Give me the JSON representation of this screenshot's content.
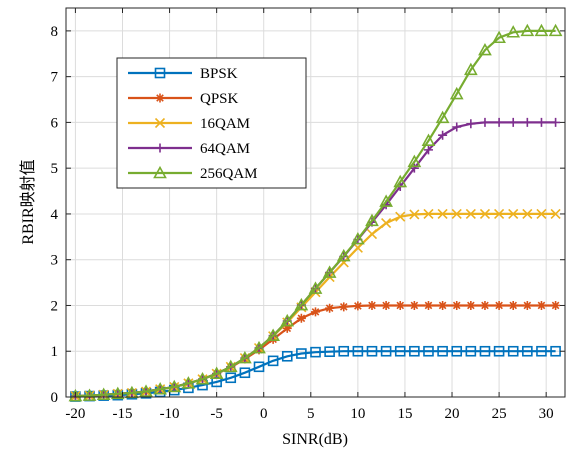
{
  "chart_data": {
    "type": "line",
    "title": "",
    "xlabel": "SINR(dB)",
    "ylabel": "RBIR映射值",
    "xlim": [
      -21,
      32
    ],
    "ylim": [
      0,
      8.5
    ],
    "xticks": [
      "-20",
      "-15",
      "-10",
      "-5",
      "0",
      "5",
      "10",
      "15",
      "20",
      "25",
      "30"
    ],
    "yticks": [
      "0",
      "1",
      "2",
      "3",
      "4",
      "5",
      "6",
      "7",
      "8"
    ],
    "grid": true,
    "legend_position": "upper-left",
    "x": [
      -20,
      -18.5,
      -17,
      -15.5,
      -14,
      -12.5,
      -11,
      -9.5,
      -8,
      -6.5,
      -5,
      -3.5,
      -2,
      -0.5,
      1,
      2.5,
      4,
      5.5,
      7,
      8.5,
      10,
      11.5,
      13,
      14.5,
      16,
      17.5,
      19,
      20.5,
      22,
      23.5,
      25,
      26.5,
      28,
      29.5,
      31
    ],
    "series": [
      {
        "name": "BPSK",
        "color": "#0072BD",
        "marker": "square",
        "values": [
          0.01,
          0.02,
          0.03,
          0.04,
          0.06,
          0.08,
          0.11,
          0.15,
          0.2,
          0.26,
          0.33,
          0.42,
          0.53,
          0.66,
          0.79,
          0.89,
          0.95,
          0.98,
          0.99,
          1,
          1,
          1,
          1,
          1,
          1,
          1,
          1,
          1,
          1,
          1,
          1,
          1,
          1,
          1,
          1
        ]
      },
      {
        "name": "QPSK",
        "color": "#D95319",
        "marker": "asterisk",
        "values": [
          0.02,
          0.03,
          0.05,
          0.07,
          0.09,
          0.12,
          0.17,
          0.22,
          0.3,
          0.39,
          0.51,
          0.65,
          0.83,
          1.03,
          1.26,
          1.5,
          1.72,
          1.86,
          1.94,
          1.97,
          1.99,
          2,
          2,
          2,
          2,
          2,
          2,
          2,
          2,
          2,
          2,
          2,
          2,
          2,
          2
        ]
      },
      {
        "name": "16QAM",
        "color": "#EDB120",
        "marker": "x",
        "values": [
          0.02,
          0.03,
          0.05,
          0.07,
          0.09,
          0.12,
          0.17,
          0.22,
          0.3,
          0.39,
          0.51,
          0.66,
          0.85,
          1.07,
          1.33,
          1.63,
          1.96,
          2.29,
          2.62,
          2.94,
          3.26,
          3.56,
          3.8,
          3.94,
          3.99,
          4,
          4,
          4,
          4,
          4,
          4,
          4,
          4,
          4,
          4
        ]
      },
      {
        "name": "64QAM",
        "color": "#7E2F8E",
        "marker": "plus",
        "values": [
          0.02,
          0.03,
          0.05,
          0.07,
          0.09,
          0.12,
          0.17,
          0.22,
          0.3,
          0.39,
          0.51,
          0.66,
          0.85,
          1.07,
          1.34,
          1.66,
          2.01,
          2.37,
          2.72,
          3.07,
          3.44,
          3.82,
          4.2,
          4.6,
          5.0,
          5.4,
          5.72,
          5.9,
          5.97,
          6,
          6,
          6,
          6,
          6,
          6
        ]
      },
      {
        "name": "256QAM",
        "color": "#77AC30",
        "marker": "triangle",
        "values": [
          0.02,
          0.03,
          0.05,
          0.07,
          0.09,
          0.12,
          0.17,
          0.22,
          0.3,
          0.39,
          0.51,
          0.66,
          0.85,
          1.07,
          1.34,
          1.66,
          2.01,
          2.37,
          2.72,
          3.08,
          3.45,
          3.85,
          4.27,
          4.7,
          5.14,
          5.6,
          6.1,
          6.62,
          7.15,
          7.58,
          7.85,
          7.97,
          8,
          8,
          8
        ]
      }
    ]
  }
}
